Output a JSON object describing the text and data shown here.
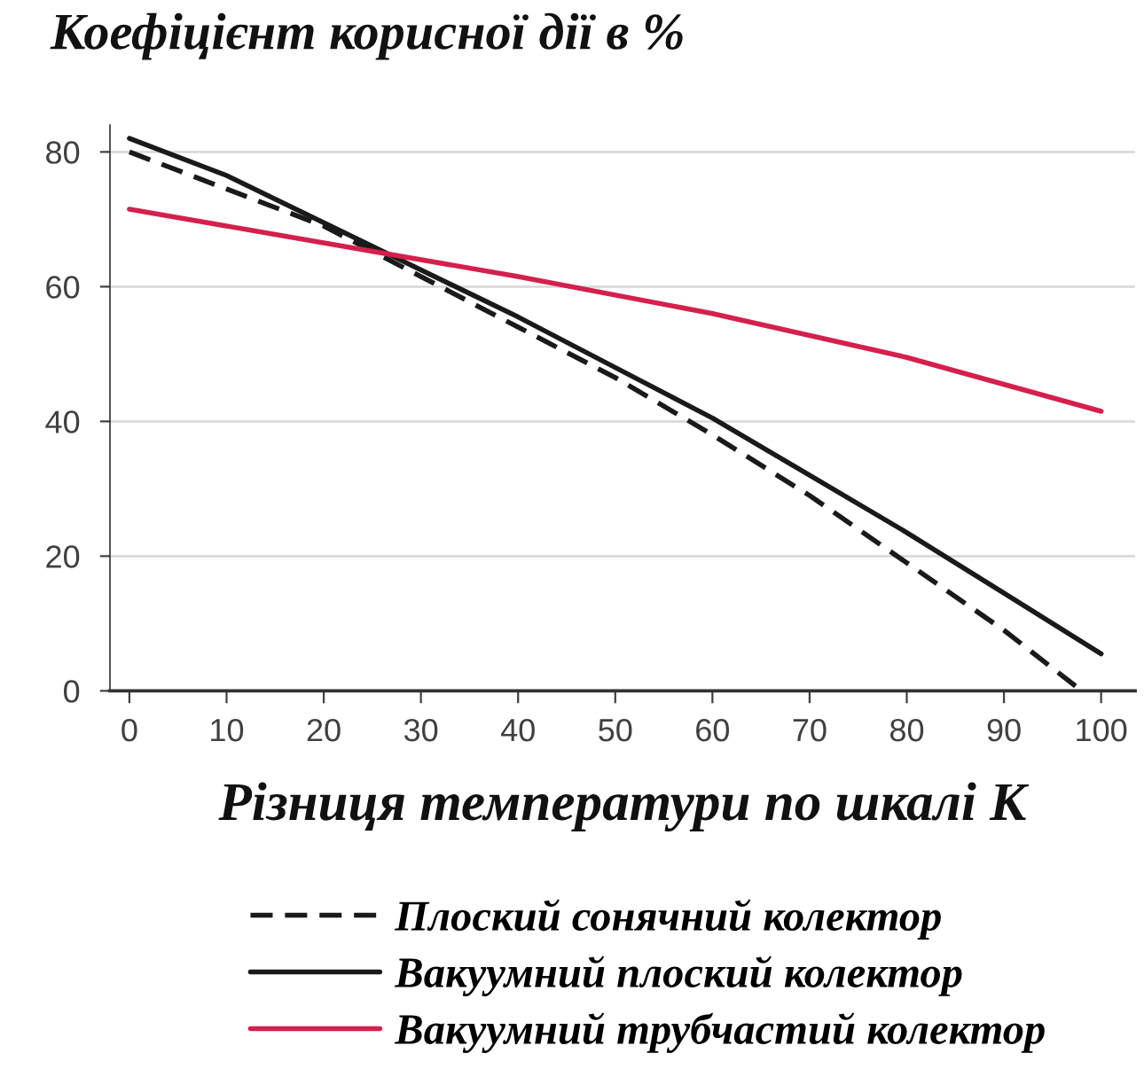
{
  "chart_data": {
    "type": "line",
    "ylabel": "Коефіцієнт корисної дії в %",
    "xlabel": "Різниця температури по шкалі К",
    "xlim": [
      -2,
      103.5
    ],
    "xticks": [
      0,
      10,
      20,
      30,
      40,
      50,
      60,
      70,
      80,
      90,
      100
    ],
    "ylim": [
      0,
      84
    ],
    "yticks": [
      0,
      20,
      40,
      60,
      80
    ],
    "grid": "y",
    "legend": "bottom",
    "series": [
      {
        "name": "Плоский сонячний колектор",
        "color": "#1a1a1a",
        "line_style": "dashed",
        "x": [
          0,
          10,
          20,
          30,
          40,
          50,
          60,
          70,
          80,
          90,
          98
        ],
        "values": [
          80,
          74.5,
          69,
          61.5,
          54,
          46.5,
          38,
          29,
          19,
          9,
          0
        ]
      },
      {
        "name": "Вакуумний плоский колектор",
        "color": "#1a1a1a",
        "line_style": "solid",
        "x": [
          0,
          10,
          20,
          30,
          40,
          50,
          60,
          70,
          80,
          90,
          100
        ],
        "values": [
          82,
          76.5,
          69.5,
          62.5,
          55.5,
          48,
          40.5,
          32,
          23.5,
          14.5,
          5.5
        ]
      },
      {
        "name": "Вакуумний трубчастий колектор",
        "color": "#d4204c",
        "line_style": "solid",
        "x": [
          0,
          20,
          40,
          60,
          80,
          100
        ],
        "values": [
          71.5,
          66.5,
          61.5,
          56,
          49.5,
          41.5
        ]
      }
    ]
  }
}
